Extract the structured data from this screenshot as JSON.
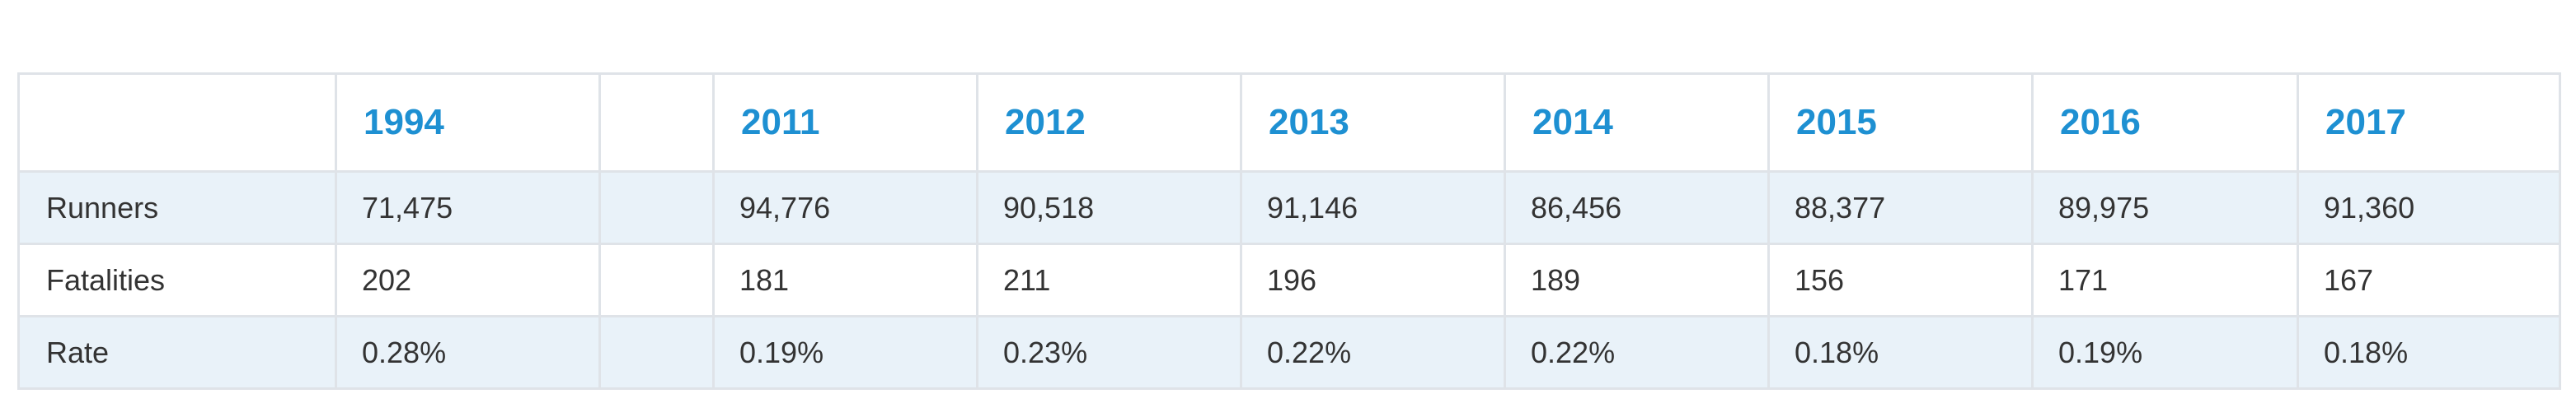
{
  "table": {
    "columns": [
      "",
      "1994",
      "",
      "2011",
      "2012",
      "2013",
      "2014",
      "2015",
      "2016",
      "2017"
    ],
    "rows": [
      {
        "label": "Runners",
        "values": [
          "71,475",
          "",
          "94,776",
          "90,518",
          "91,146",
          "86,456",
          "88,377",
          "89,975",
          "91,360"
        ]
      },
      {
        "label": "Fatalities",
        "values": [
          "202",
          "",
          "181",
          "211",
          "196",
          "189",
          "156",
          "171",
          "167"
        ]
      },
      {
        "label": "Rate",
        "values": [
          "0.28%",
          "",
          "0.19%",
          "0.23%",
          "0.22%",
          "0.22%",
          "0.18%",
          "0.19%",
          "0.18%"
        ]
      }
    ]
  },
  "colors": {
    "header_text": "#1e90d2",
    "row_shade": "#e9f2f9",
    "border": "#dfe3e8",
    "body_text": "#333333"
  }
}
